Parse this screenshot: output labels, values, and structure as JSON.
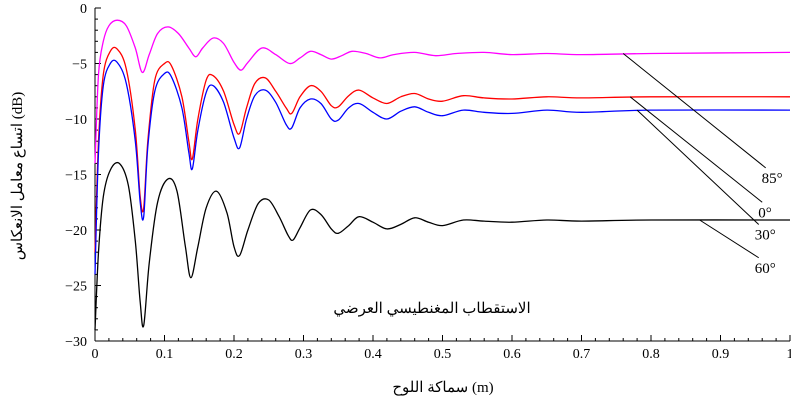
{
  "chart_data": {
    "type": "line",
    "xlabel": "سماكة اللوح (m)",
    "ylabel": "اتساع معامل الانعكاس (dB)",
    "annotation": "الاستقطاب المغنطيسي العرضي",
    "xlim": [
      0,
      1
    ],
    "ylim": [
      -30,
      0
    ],
    "x_ticks": [
      "0",
      "0.1",
      "0.2",
      "0.3",
      "0.4",
      "0.5",
      "0.6",
      "0.7",
      "0.8",
      "0.9",
      "1"
    ],
    "y_ticks": [
      "0",
      "−5",
      "−10",
      "−15",
      "−20",
      "−25",
      "−30"
    ],
    "grid": false,
    "series": [
      {
        "name": "85°",
        "color": "#ff00ff",
        "points": [
          [
            0.0,
            -14
          ],
          [
            0.005,
            -6
          ],
          [
            0.012,
            -3
          ],
          [
            0.02,
            -1.6
          ],
          [
            0.032,
            -1.1
          ],
          [
            0.045,
            -1.6
          ],
          [
            0.058,
            -3.6
          ],
          [
            0.068,
            -5.8
          ],
          [
            0.078,
            -4.2
          ],
          [
            0.09,
            -2.3
          ],
          [
            0.105,
            -1.7
          ],
          [
            0.12,
            -2.3
          ],
          [
            0.135,
            -3.6
          ],
          [
            0.145,
            -4.4
          ],
          [
            0.155,
            -3.6
          ],
          [
            0.17,
            -2.7
          ],
          [
            0.185,
            -3.2
          ],
          [
            0.2,
            -4.9
          ],
          [
            0.21,
            -5.6
          ],
          [
            0.22,
            -4.9
          ],
          [
            0.24,
            -3.6
          ],
          [
            0.26,
            -4.2
          ],
          [
            0.28,
            -5.0
          ],
          [
            0.295,
            -4.5
          ],
          [
            0.31,
            -3.9
          ],
          [
            0.325,
            -4.2
          ],
          [
            0.34,
            -4.6
          ],
          [
            0.355,
            -4.3
          ],
          [
            0.37,
            -3.9
          ],
          [
            0.39,
            -4.1
          ],
          [
            0.41,
            -4.5
          ],
          [
            0.43,
            -4.2
          ],
          [
            0.46,
            -4.0
          ],
          [
            0.49,
            -4.3
          ],
          [
            0.52,
            -4.1
          ],
          [
            0.56,
            -4.0
          ],
          [
            0.6,
            -4.2
          ],
          [
            0.65,
            -4.1
          ],
          [
            0.7,
            -4.2
          ],
          [
            0.8,
            -4.1
          ],
          [
            1.0,
            -4.0
          ]
        ]
      },
      {
        "name": "0°",
        "color": "#ff0000",
        "points": [
          [
            0.0,
            -22
          ],
          [
            0.005,
            -12
          ],
          [
            0.012,
            -6
          ],
          [
            0.022,
            -3.9
          ],
          [
            0.032,
            -3.7
          ],
          [
            0.045,
            -5.5
          ],
          [
            0.058,
            -11
          ],
          [
            0.065,
            -17
          ],
          [
            0.07,
            -18
          ],
          [
            0.076,
            -12
          ],
          [
            0.086,
            -6.5
          ],
          [
            0.1,
            -5
          ],
          [
            0.11,
            -5.2
          ],
          [
            0.125,
            -8
          ],
          [
            0.135,
            -12
          ],
          [
            0.14,
            -13.6
          ],
          [
            0.148,
            -10
          ],
          [
            0.16,
            -6.5
          ],
          [
            0.17,
            -6.1
          ],
          [
            0.185,
            -7.5
          ],
          [
            0.2,
            -10.5
          ],
          [
            0.208,
            -11.3
          ],
          [
            0.218,
            -9
          ],
          [
            0.23,
            -6.8
          ],
          [
            0.245,
            -6.3
          ],
          [
            0.26,
            -7.5
          ],
          [
            0.275,
            -9
          ],
          [
            0.283,
            -9.5
          ],
          [
            0.295,
            -8
          ],
          [
            0.31,
            -7
          ],
          [
            0.325,
            -7.5
          ],
          [
            0.34,
            -8.8
          ],
          [
            0.35,
            -8.9
          ],
          [
            0.365,
            -7.9
          ],
          [
            0.38,
            -7.4
          ],
          [
            0.4,
            -8.1
          ],
          [
            0.42,
            -8.6
          ],
          [
            0.44,
            -8
          ],
          [
            0.46,
            -7.7
          ],
          [
            0.48,
            -8.2
          ],
          [
            0.5,
            -8.4
          ],
          [
            0.53,
            -7.9
          ],
          [
            0.56,
            -8.1
          ],
          [
            0.6,
            -8.2
          ],
          [
            0.65,
            -8.0
          ],
          [
            0.7,
            -8.1
          ],
          [
            0.8,
            -8.0
          ],
          [
            1.0,
            -8.0
          ]
        ]
      },
      {
        "name": "30°",
        "color": "#0000ff",
        "points": [
          [
            0.0,
            -24
          ],
          [
            0.005,
            -13
          ],
          [
            0.012,
            -7
          ],
          [
            0.022,
            -5
          ],
          [
            0.032,
            -4.9
          ],
          [
            0.045,
            -6.8
          ],
          [
            0.058,
            -12
          ],
          [
            0.065,
            -17.5
          ],
          [
            0.07,
            -18.8
          ],
          [
            0.076,
            -12.5
          ],
          [
            0.086,
            -7.5
          ],
          [
            0.1,
            -5.9
          ],
          [
            0.11,
            -6.2
          ],
          [
            0.125,
            -9
          ],
          [
            0.135,
            -13
          ],
          [
            0.14,
            -14.5
          ],
          [
            0.148,
            -11
          ],
          [
            0.16,
            -7.6
          ],
          [
            0.17,
            -7
          ],
          [
            0.185,
            -8.5
          ],
          [
            0.2,
            -11.7
          ],
          [
            0.208,
            -12.6
          ],
          [
            0.218,
            -10
          ],
          [
            0.23,
            -7.9
          ],
          [
            0.245,
            -7.4
          ],
          [
            0.26,
            -8.5
          ],
          [
            0.275,
            -10.5
          ],
          [
            0.283,
            -10.8
          ],
          [
            0.295,
            -9
          ],
          [
            0.31,
            -8.2
          ],
          [
            0.325,
            -8.6
          ],
          [
            0.34,
            -10
          ],
          [
            0.35,
            -10.1
          ],
          [
            0.365,
            -9
          ],
          [
            0.38,
            -8.6
          ],
          [
            0.4,
            -9.4
          ],
          [
            0.42,
            -10
          ],
          [
            0.44,
            -9.3
          ],
          [
            0.46,
            -8.9
          ],
          [
            0.48,
            -9.4
          ],
          [
            0.5,
            -9.7
          ],
          [
            0.53,
            -9.2
          ],
          [
            0.56,
            -9.4
          ],
          [
            0.6,
            -9.5
          ],
          [
            0.65,
            -9.2
          ],
          [
            0.7,
            -9.4
          ],
          [
            0.8,
            -9.2
          ],
          [
            1.0,
            -9.2
          ]
        ]
      },
      {
        "name": "60°",
        "color": "#000000",
        "points": [
          [
            0.0,
            -29
          ],
          [
            0.005,
            -22
          ],
          [
            0.012,
            -17
          ],
          [
            0.022,
            -14.6
          ],
          [
            0.035,
            -14
          ],
          [
            0.048,
            -16
          ],
          [
            0.058,
            -21
          ],
          [
            0.065,
            -26.5
          ],
          [
            0.07,
            -28.6
          ],
          [
            0.078,
            -23
          ],
          [
            0.09,
            -17.5
          ],
          [
            0.105,
            -15.4
          ],
          [
            0.118,
            -16.5
          ],
          [
            0.13,
            -21.5
          ],
          [
            0.138,
            -24.3
          ],
          [
            0.148,
            -21.5
          ],
          [
            0.16,
            -18
          ],
          [
            0.175,
            -16.5
          ],
          [
            0.19,
            -18.5
          ],
          [
            0.2,
            -21.5
          ],
          [
            0.208,
            -22.3
          ],
          [
            0.22,
            -20
          ],
          [
            0.235,
            -17.6
          ],
          [
            0.25,
            -17.3
          ],
          [
            0.265,
            -18.8
          ],
          [
            0.278,
            -20.5
          ],
          [
            0.285,
            -20.9
          ],
          [
            0.295,
            -19.8
          ],
          [
            0.31,
            -18.2
          ],
          [
            0.325,
            -18.6
          ],
          [
            0.34,
            -19.9
          ],
          [
            0.35,
            -20.3
          ],
          [
            0.365,
            -19.6
          ],
          [
            0.38,
            -18.8
          ],
          [
            0.4,
            -19.3
          ],
          [
            0.42,
            -19.9
          ],
          [
            0.44,
            -19.5
          ],
          [
            0.46,
            -18.9
          ],
          [
            0.48,
            -19.3
          ],
          [
            0.5,
            -19.6
          ],
          [
            0.53,
            -19.1
          ],
          [
            0.56,
            -19.2
          ],
          [
            0.6,
            -19.3
          ],
          [
            0.65,
            -19.1
          ],
          [
            0.7,
            -19.2
          ],
          [
            0.8,
            -19.1
          ],
          [
            1.0,
            -19.1
          ]
        ]
      }
    ],
    "series_labels": [
      {
        "name": "85°",
        "from": [
          0.76,
          -4.1
        ],
        "to": [
          0.965,
          -14.4
        ]
      },
      {
        "name": "0°",
        "from": [
          0.77,
          -8.0
        ],
        "to": [
          0.96,
          -17.5
        ]
      },
      {
        "name": "30°",
        "from": [
          0.78,
          -9.2
        ],
        "to": [
          0.955,
          -19.5
        ]
      },
      {
        "name": "60°",
        "from": [
          0.87,
          -19.1
        ],
        "to": [
          0.955,
          -22.5
        ]
      }
    ]
  }
}
